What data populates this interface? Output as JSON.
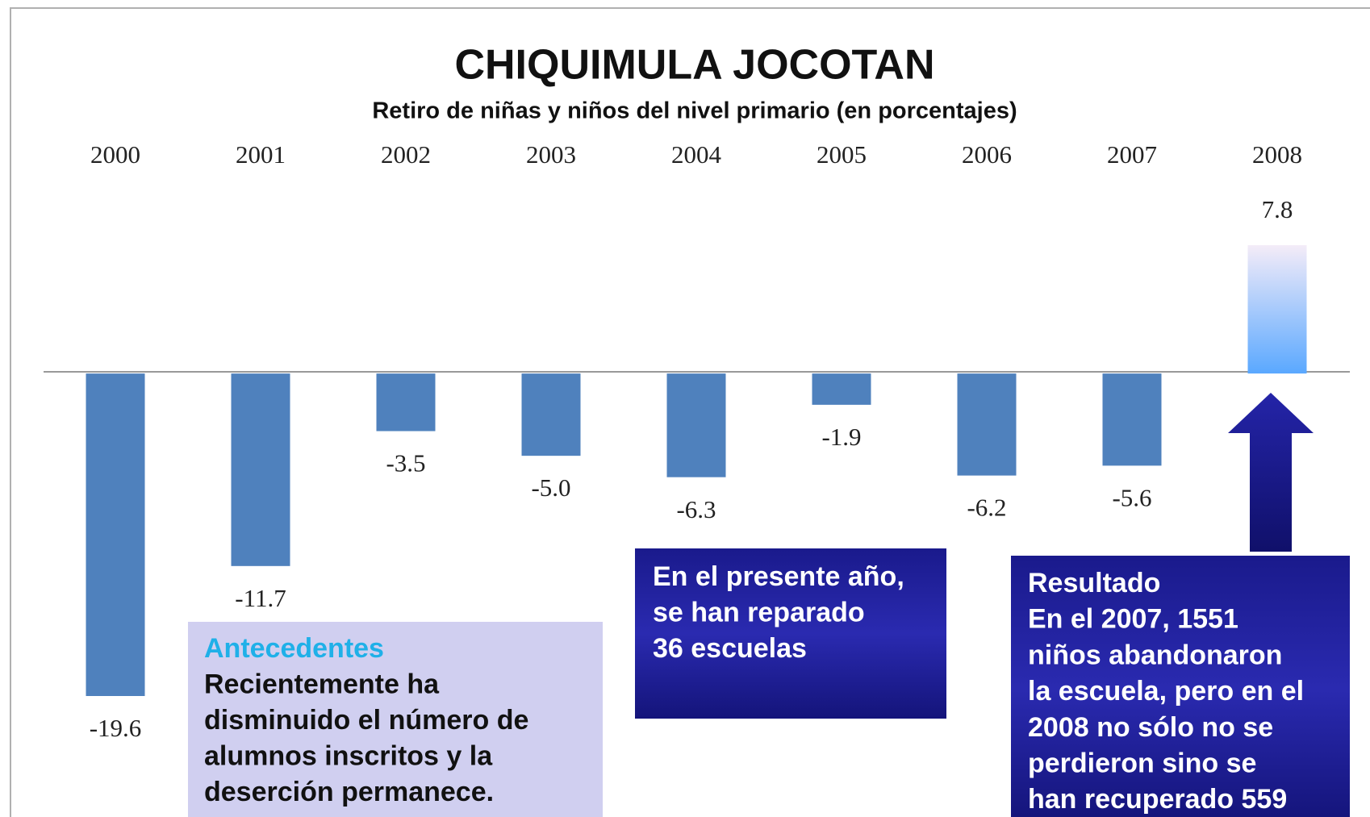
{
  "chart_data": {
    "type": "bar",
    "title": "CHIQUIMULA JOCOTAN",
    "subtitle": "Retiro de niñas y niños del nivel primario (en porcentajes)",
    "categories": [
      "2000",
      "2001",
      "2002",
      "2003",
      "2004",
      "2005",
      "2006",
      "2007",
      "2008"
    ],
    "values": [
      -19.6,
      -11.7,
      -3.5,
      -5.0,
      -6.3,
      -1.9,
      -6.2,
      -5.6,
      7.8
    ],
    "value_labels": [
      "-19.6",
      "-11.7",
      "-3.5",
      "-5.0",
      "-6.3",
      "-1.9",
      "-6.2",
      "-5.6",
      "7.8"
    ],
    "colors": [
      "#4f81bd",
      "#4f81bd",
      "#4f81bd",
      "#4f81bd",
      "#4f81bd",
      "#4f81bd",
      "#4f81bd",
      "#4f81bd",
      "#5aa8ff"
    ],
    "annotations": [
      {
        "title": "Antecedentes",
        "lines": [
          "Recientemente ha",
          "disminuido el número de",
          "alumnos inscritos y la",
          "deserción permanece."
        ]
      },
      {
        "lines": [
          "En el presente año,",
          "se han reparado",
          "36 escuelas"
        ]
      },
      {
        "title": "Resultado",
        "lines": [
          "En el 2007, 1551",
          "niños abandonaron",
          "la escuela, pero en el",
          "2008 no sólo no se",
          "perdieron sino se",
          "han recuperado 559"
        ]
      }
    ]
  }
}
